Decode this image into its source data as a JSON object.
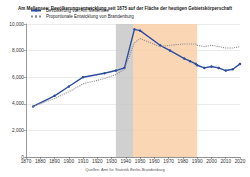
{
  "chart_data": {
    "type": "line",
    "title": "Am Mellensee: Bevölkerungsentwicklung seit 1875 auf der Fläche der heutigen Gebietskörperschaft",
    "source": "Quellen: Amt für Statistik Berlin-Brandenburg",
    "x": [
      1875,
      1890,
      1900,
      1910,
      1925,
      1933,
      1939,
      1946,
      1950,
      1964,
      1971,
      1981,
      1985,
      1989,
      1990,
      1995,
      2000,
      2005,
      2010,
      2015,
      2020
    ],
    "series": [
      {
        "name": "Bevölkerung von Am Mellensee",
        "color": "#2b4f9e",
        "marker": "circle",
        "line_style": "solid",
        "values": [
          3800,
          4600,
          5300,
          6000,
          6300,
          6500,
          6700,
          9600,
          9500,
          8400,
          8000,
          7400,
          7200,
          7000,
          6900,
          6700,
          6800,
          6700,
          6500,
          6600,
          7000
        ]
      },
      {
        "name": "Proportionale Entwicklung von Brandenburg",
        "color": "#8c8c8c",
        "marker": "none",
        "line_style": "dotted",
        "values": [
          3800,
          4400,
          4900,
          5500,
          5900,
          6200,
          6600,
          8600,
          8900,
          8300,
          8400,
          8500,
          8500,
          8500,
          8400,
          8300,
          8400,
          8300,
          8200,
          8200,
          8300
        ]
      }
    ],
    "periods": [
      {
        "from": 1933,
        "to": 1945,
        "color": "#c8c8c8"
      },
      {
        "from": 1945,
        "to": 1990,
        "color": "#f9cfa8"
      }
    ],
    "xlim": [
      1870,
      2020
    ],
    "xticks": [
      1870,
      1880,
      1890,
      1900,
      1910,
      1920,
      1930,
      1940,
      1950,
      1960,
      1970,
      1980,
      1990,
      2000,
      2010,
      2020
    ],
    "ylim": [
      0,
      10000
    ],
    "yticks": [
      0,
      {
        "value": 2000,
        "label": "2,000"
      },
      {
        "value": 4000,
        "label": "4,000"
      },
      {
        "value": 6000,
        "label": "6,000"
      },
      {
        "value": 8000,
        "label": "8,000"
      },
      {
        "value": 10000,
        "label": "10,000"
      }
    ],
    "grid": true,
    "legend": "top-left"
  }
}
